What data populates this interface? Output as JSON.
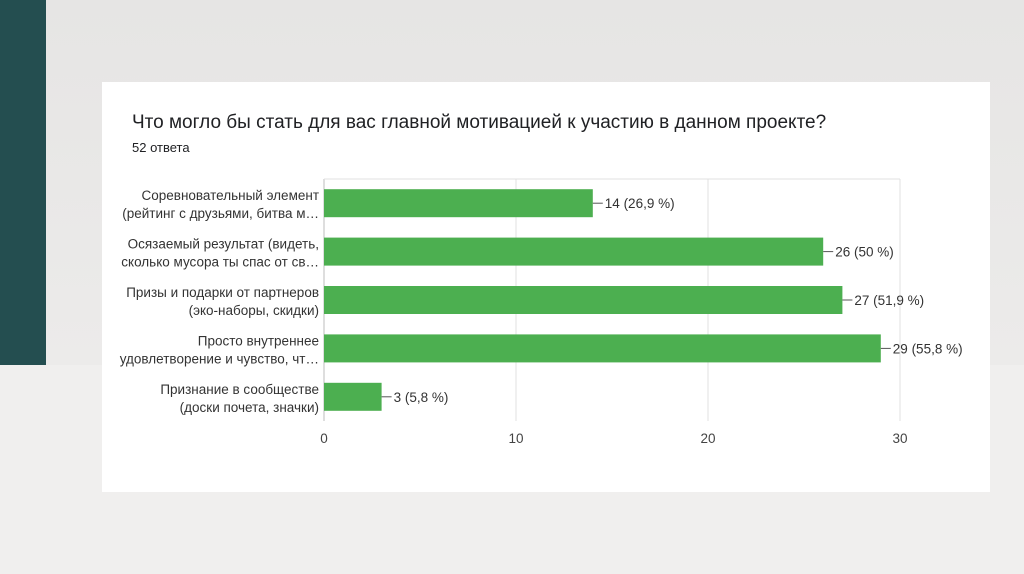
{
  "colors": {
    "bar": "#4caf50",
    "grid": "#e0e0e0",
    "accent": "#244e50",
    "text": "#202124"
  },
  "header": {
    "title": "Что могло бы стать для вас главной мотивацией к участию в данном проекте?",
    "subtitle": "52 ответа"
  },
  "chart_data": {
    "type": "bar",
    "orientation": "horizontal",
    "title": "Что могло бы стать для вас главной мотивацией к участию в данном проекте?",
    "subtitle": "52 ответа",
    "categories": [
      [
        "Соревновательный элемент",
        "(рейтинг с друзьями, битва м…"
      ],
      [
        "Осязаемый результат (видеть,",
        "сколько мусора ты спас от св…"
      ],
      [
        "Призы и подарки от партнеров",
        "(эко-наборы, скидки)"
      ],
      [
        "Просто внутреннее",
        "удовлетворение и чувство, чт…"
      ],
      [
        "Признание в сообществе",
        "(доски почета, значки)"
      ]
    ],
    "values": [
      14,
      26,
      27,
      29,
      3
    ],
    "data_labels": [
      "14 (26,9 %)",
      "26 (50 %)",
      "27 (51,9 %)",
      "29 (55,8 %)",
      "3 (5,8 %)"
    ],
    "xlim": [
      0,
      30
    ],
    "x_ticks": [
      0,
      10,
      20,
      30
    ],
    "x_tick_labels": [
      "0",
      "10",
      "20",
      "30"
    ],
    "grid": true,
    "legend": "none"
  }
}
